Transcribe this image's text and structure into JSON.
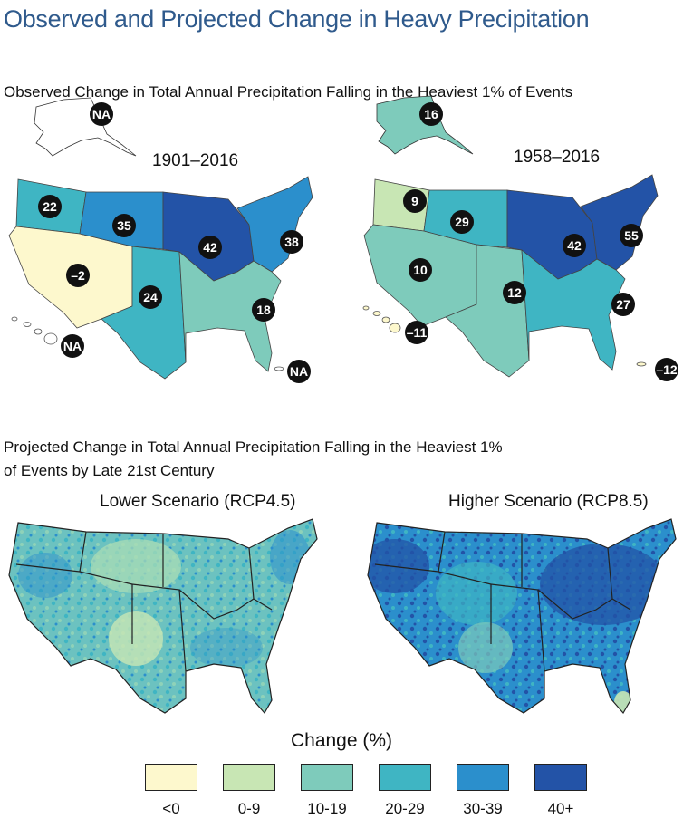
{
  "title": "Observed and Projected Change in Heavy Precipitation",
  "observed": {
    "subtitle": "Observed Change in Total Annual Precipitation Falling in the Heaviest 1% of Events",
    "period_left": "1901–2016",
    "period_right": "1958–2016",
    "left_values": {
      "northwest": "22",
      "great_plains_north": "35",
      "midwest": "42",
      "northeast": "38",
      "southwest": "–2",
      "great_plains_south": "24",
      "southeast": "18",
      "alaska": "NA",
      "hawaii": "NA",
      "caribbean": "NA"
    },
    "right_values": {
      "northwest": "9",
      "great_plains_north": "29",
      "midwest": "42",
      "northeast": "55",
      "southwest": "10",
      "great_plains_south": "12",
      "southeast": "27",
      "alaska": "16",
      "hawaii": "–11",
      "caribbean": "–12"
    }
  },
  "projected": {
    "subtitle_line1": "Projected Change in Total Annual Precipitation Falling in the Heaviest 1%",
    "subtitle_line2": "of Events by Late 21st Century",
    "scenario_left": "Lower Scenario (RCP4.5)",
    "scenario_right": "Higher Scenario (RCP8.5)"
  },
  "legend": {
    "title": "Change (%)",
    "items": [
      {
        "label": "<0",
        "color": "#fdf8cd"
      },
      {
        "label": "0-9",
        "color": "#c8e6b4"
      },
      {
        "label": "10-19",
        "color": "#7ecbbb"
      },
      {
        "label": "20-29",
        "color": "#3fb5c3"
      },
      {
        "label": "30-39",
        "color": "#2b8fcc"
      },
      {
        "label": "40+",
        "color": "#2353a7"
      }
    ]
  }
}
